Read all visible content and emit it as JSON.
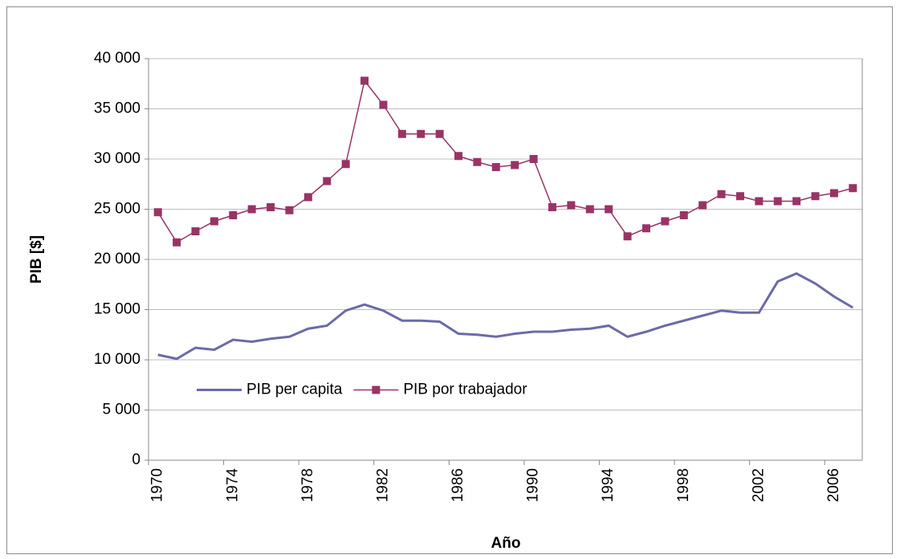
{
  "chart_data": {
    "type": "line",
    "xlabel": "Año",
    "ylabel": "PIB [$]",
    "categories": [
      "1970",
      null,
      null,
      null,
      "1974",
      null,
      null,
      null,
      "1978",
      null,
      null,
      null,
      "1982",
      null,
      null,
      null,
      "1986",
      null,
      null,
      null,
      "1990",
      null,
      null,
      null,
      "1994",
      null,
      null,
      null,
      "1998",
      null,
      null,
      null,
      "2002",
      null,
      null,
      null,
      "2006",
      null
    ],
    "series": [
      {
        "name": "PIB per capita",
        "color": "#6b6aa8",
        "marker": "none",
        "values": [
          10500,
          10100,
          11200,
          11000,
          12000,
          11800,
          12100,
          12300,
          13100,
          13400,
          14900,
          15500,
          14900,
          13900,
          13900,
          13800,
          12600,
          12500,
          12300,
          12600,
          12800,
          12800,
          13000,
          13100,
          13400,
          12300,
          12800,
          13400,
          13900,
          14400,
          14900,
          14700,
          14700,
          17800,
          18600,
          17600,
          16300,
          15200
        ]
      },
      {
        "name": "PIB por trabajador",
        "color": "#993366",
        "marker": "square",
        "values": [
          24700,
          21700,
          22800,
          23800,
          24400,
          25000,
          25200,
          24900,
          26200,
          27800,
          29500,
          37800,
          35400,
          32500,
          32500,
          32500,
          30300,
          29700,
          29200,
          29400,
          30000,
          25200,
          25400,
          25000,
          25000,
          22300,
          23100,
          23800,
          24400,
          25400,
          26500,
          26300,
          25800,
          25800,
          25800,
          26300,
          26600,
          27100
        ]
      }
    ],
    "ylim": [
      0,
      40000
    ],
    "yticks": [
      0,
      {
        "value": 5000,
        "label": "5 000"
      },
      {
        "value": 10000,
        "label": "10 000"
      },
      {
        "value": 15000,
        "label": "15 000"
      },
      {
        "value": 20000,
        "label": "20 000"
      },
      {
        "value": 25000,
        "label": "25 000"
      },
      {
        "value": 30000,
        "label": "30 000"
      },
      {
        "value": 35000,
        "label": "35 000"
      },
      {
        "value": 40000,
        "label": "40 000"
      }
    ],
    "grid": true,
    "legend": "lower left"
  }
}
